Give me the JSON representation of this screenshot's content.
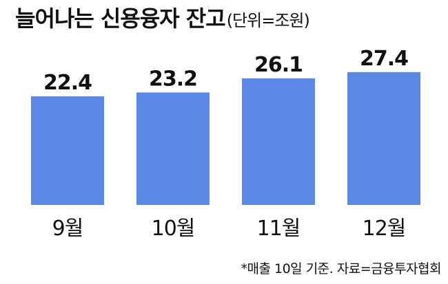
{
  "chart_data": {
    "type": "bar",
    "title": "늘어나는 신용융자 잔고",
    "unit": "(단위=조원)",
    "categories": [
      "9월",
      "10월",
      "11월",
      "12월"
    ],
    "values": [
      22.4,
      23.2,
      26.1,
      27.4
    ],
    "color": "#5b88e6",
    "note": "*매출 10일 기준. 자료=금융투자협회"
  }
}
